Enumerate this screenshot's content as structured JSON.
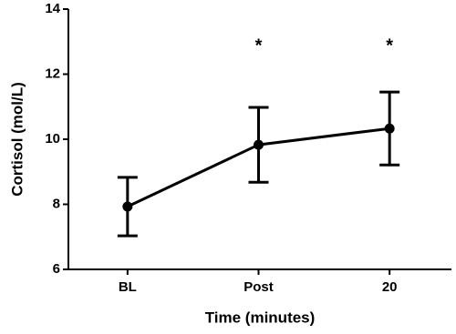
{
  "chart_data": {
    "type": "line",
    "x_label": "Time (minutes)",
    "y_label": "Cortisol (mol/L)",
    "categories": [
      "BL",
      "Post",
      "20"
    ],
    "series": [
      {
        "values": [
          7.93,
          9.83,
          10.33
        ],
        "errors": [
          0.9,
          1.15,
          1.12
        ],
        "color": "#000000"
      }
    ],
    "ylim": [
      6,
      14
    ],
    "yticks": [
      6,
      8,
      10,
      12,
      14
    ],
    "grid": false,
    "annotations": [
      {
        "text": "*",
        "x": "Post",
        "y": 12.85
      },
      {
        "text": "*",
        "x": "20",
        "y": 12.85
      }
    ]
  }
}
